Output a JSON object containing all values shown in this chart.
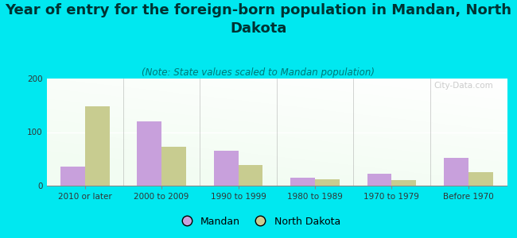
{
  "title": "Year of entry for the foreign-born population in Mandan, North\nDakota",
  "subtitle": "(Note: State values scaled to Mandan population)",
  "categories": [
    "2010 or later",
    "2000 to 2009",
    "1990 to 1999",
    "1980 to 1989",
    "1970 to 1979",
    "Before 1970"
  ],
  "mandan_values": [
    35,
    120,
    65,
    15,
    22,
    52
  ],
  "nd_values": [
    148,
    72,
    38,
    12,
    10,
    25
  ],
  "mandan_color": "#c8a0dc",
  "nd_color": "#c8cc90",
  "background_color": "#00e8f0",
  "ylim": [
    0,
    200
  ],
  "yticks": [
    0,
    100,
    200
  ],
  "title_fontsize": 13,
  "subtitle_fontsize": 8.5,
  "tick_fontsize": 7.5,
  "legend_fontsize": 9,
  "watermark": "City-Data.com",
  "legend_labels": [
    "Mandan",
    "North Dakota"
  ],
  "title_color": "#003333",
  "subtitle_color": "#007777",
  "axis_color": "#888888"
}
